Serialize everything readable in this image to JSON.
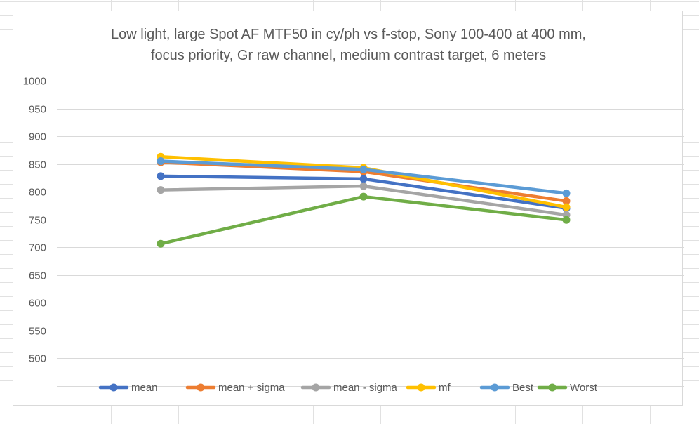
{
  "chart_data": {
    "type": "line",
    "title_line1": "Low light, large Spot AF MTF50 in cy/ph vs f-stop, Sony 100-400 at 400 mm,",
    "title_line2": "focus priority, Gr raw channel, medium contrast target, 6 meters",
    "xlabel": "",
    "ylabel": "",
    "x": [
      "",
      "",
      ""
    ],
    "ylim": [
      500,
      1000
    ],
    "yticks": [
      500,
      550,
      600,
      650,
      700,
      750,
      800,
      850,
      900,
      950,
      1000
    ],
    "grid": true,
    "legend_position": "bottom",
    "series": [
      {
        "name": "mean",
        "color": "#4472C4",
        "values": [
          828,
          823,
          770
        ]
      },
      {
        "name": "mean + sigma",
        "color": "#ED7D31",
        "values": [
          853,
          836,
          783
        ]
      },
      {
        "name": "mean - sigma",
        "color": "#A5A5A5",
        "values": [
          803,
          810,
          758
        ]
      },
      {
        "name": "mf",
        "color": "#FFC000",
        "values": [
          863,
          843,
          772
        ]
      },
      {
        "name": "Best",
        "color": "#5B9BD5",
        "values": [
          855,
          840,
          797
        ]
      },
      {
        "name": "Worst",
        "color": "#70AD47",
        "values": [
          706,
          791,
          749
        ]
      }
    ]
  }
}
